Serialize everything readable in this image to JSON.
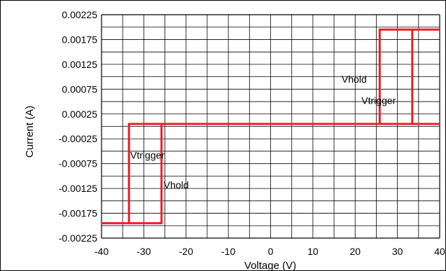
{
  "chart_data": {
    "type": "line",
    "title": "",
    "xlabel": "Voltage (V)",
    "ylabel": "Current (A)",
    "xlim": [
      -40,
      40
    ],
    "ylim": [
      -0.00225,
      0.00225
    ],
    "x_ticks": [
      "-40",
      "-30",
      "-20",
      "-10",
      "0",
      "10",
      "20",
      "30",
      "40"
    ],
    "y_ticks": [
      "0.00225",
      "0.00175",
      "0.00125",
      "0.00075",
      "0.00025",
      "-0.00025",
      "-0.00075",
      "-0.00125",
      "-0.00175",
      "-0.00225"
    ],
    "grid": true,
    "series": [
      {
        "color": "#ee1c24",
        "points": [
          [
            -40,
            -0.00195
          ],
          [
            -33.5,
            -0.00195
          ],
          [
            -33.5,
            5e-05
          ],
          [
            40,
            5e-05
          ],
          [
            33.5,
            5e-05
          ],
          [
            33.5,
            0.00195
          ],
          [
            40,
            0.00195
          ],
          [
            25.8,
            0.00195
          ],
          [
            25.8,
            5e-05
          ],
          [
            -25.8,
            5e-05
          ],
          [
            -25.8,
            -0.00195
          ],
          [
            -40,
            -0.00195
          ]
        ]
      }
    ],
    "annotations": [
      {
        "text": "Vhold",
        "x": 16.8,
        "y": 0.00095
      },
      {
        "text": "Vtrigger",
        "x": 21.5,
        "y": 0.00052
      },
      {
        "text": "Vtrigger",
        "x": -33.2,
        "y": -0.00058
      },
      {
        "text": "Vhold",
        "x": -25.3,
        "y": -0.00118
      }
    ]
  }
}
